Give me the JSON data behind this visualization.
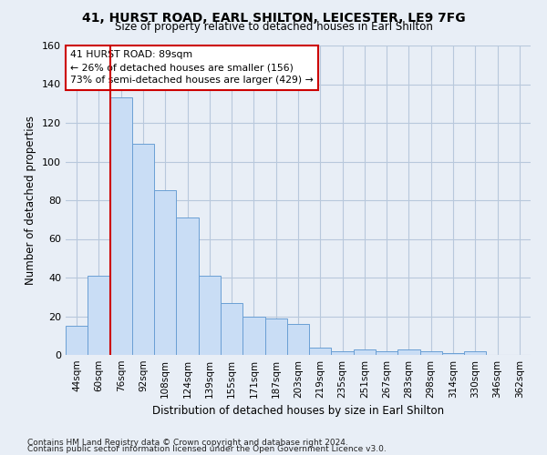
{
  "title": "41, HURST ROAD, EARL SHILTON, LEICESTER, LE9 7FG",
  "subtitle": "Size of property relative to detached houses in Earl Shilton",
  "xlabel": "Distribution of detached houses by size in Earl Shilton",
  "ylabel": "Number of detached properties",
  "categories": [
    "44sqm",
    "60sqm",
    "76sqm",
    "92sqm",
    "108sqm",
    "124sqm",
    "139sqm",
    "155sqm",
    "171sqm",
    "187sqm",
    "203sqm",
    "219sqm",
    "235sqm",
    "251sqm",
    "267sqm",
    "283sqm",
    "298sqm",
    "314sqm",
    "330sqm",
    "346sqm",
    "362sqm"
  ],
  "values": [
    15,
    41,
    133,
    109,
    85,
    71,
    41,
    27,
    20,
    19,
    16,
    4,
    2,
    3,
    2,
    3,
    2,
    1,
    2,
    0,
    0
  ],
  "bar_color": "#c9ddf5",
  "bar_edge_color": "#6a9fd4",
  "grid_color": "#b8c8dc",
  "bg_color": "#e8eef6",
  "vline_color": "#cc0000",
  "vline_x_index": 2,
  "annotation_text": "41 HURST ROAD: 89sqm\n← 26% of detached houses are smaller (156)\n73% of semi-detached houses are larger (429) →",
  "annotation_box_color": "white",
  "annotation_box_edge": "#cc0000",
  "ylim": [
    0,
    160
  ],
  "yticks": [
    0,
    20,
    40,
    60,
    80,
    100,
    120,
    140,
    160
  ],
  "footer1": "Contains HM Land Registry data © Crown copyright and database right 2024.",
  "footer2": "Contains public sector information licensed under the Open Government Licence v3.0."
}
